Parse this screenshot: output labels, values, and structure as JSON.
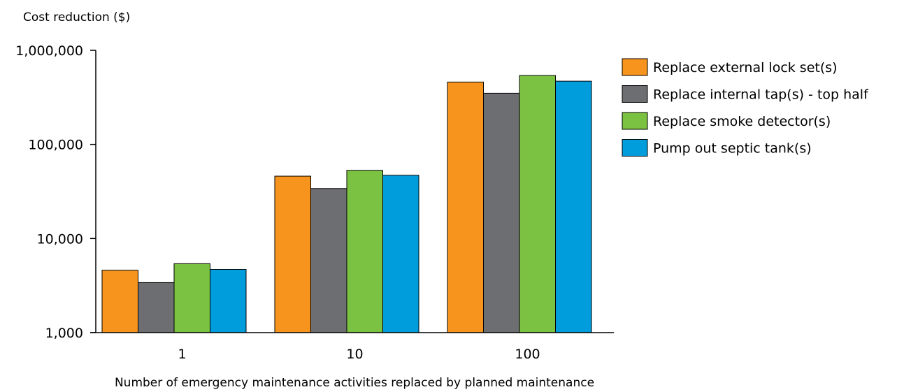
{
  "chart_data": {
    "type": "bar",
    "title": "",
    "ylabel": "Cost reduction ($)",
    "xlabel": "Number of emergency maintenance activities replaced by planned maintenance",
    "categories": [
      "1",
      "10",
      "100"
    ],
    "y_scale": "log",
    "ylim": [
      1000,
      1000000
    ],
    "y_ticks": [
      1000,
      10000,
      100000,
      1000000
    ],
    "y_tick_labels": [
      "1,000",
      "10,000",
      "100,000",
      "1,000,000"
    ],
    "grid": false,
    "legend_position": "right",
    "series": [
      {
        "name": "Replace external lock set(s)",
        "color": "#f7941d",
        "values": [
          4600,
          46000,
          460000
        ]
      },
      {
        "name": "Replace internal tap(s) - top half",
        "color": "#6d6e71",
        "values": [
          3400,
          34000,
          350000
        ]
      },
      {
        "name": "Replace smoke detector(s)",
        "color": "#7cc242",
        "values": [
          5400,
          53000,
          540000
        ]
      },
      {
        "name": "Pump out septic tank(s)",
        "color": "#009ddc",
        "values": [
          4700,
          47000,
          470000
        ]
      }
    ]
  }
}
